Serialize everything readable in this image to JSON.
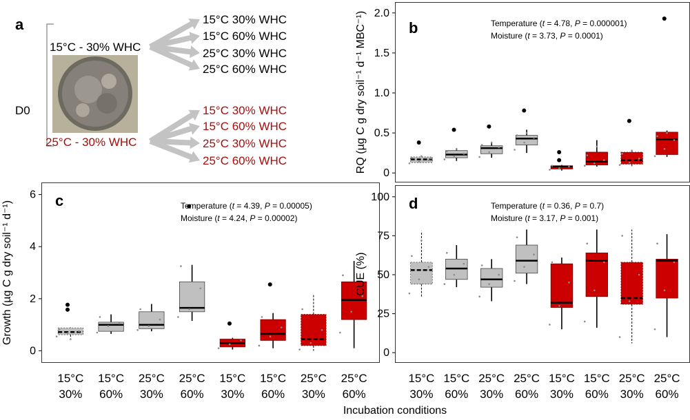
{
  "panel_a": {
    "letter": "a",
    "d0_label": "D0",
    "source_top": "15°C - 30% WHC",
    "source_bottom": "25°C - 30% WHC",
    "targets_top": [
      "15°C 30% WHC",
      "15°C 60% WHC",
      "25°C 30% WHC",
      "25°C 60% WHC"
    ],
    "targets_bottom": [
      "15°C 30% WHC",
      "15°C 60% WHC",
      "25°C 30% WHC",
      "25°C 60% WHC"
    ],
    "top_color": "#000000",
    "bottom_color": "#a50e0e",
    "arrow_color": "#c3c3c3"
  },
  "colors": {
    "grey_fill": "#c0c0c0",
    "red_fill": "#cc0000",
    "jitter": "#8a8a8a",
    "border": "#333333"
  },
  "x_conditions": [
    {
      "temp": "15°C",
      "moist": "30%"
    },
    {
      "temp": "15°C",
      "moist": "60%"
    },
    {
      "temp": "25°C",
      "moist": "30%"
    },
    {
      "temp": "25°C",
      "moist": "60%"
    },
    {
      "temp": "15°C",
      "moist": "30%"
    },
    {
      "temp": "15°C",
      "moist": "60%"
    },
    {
      "temp": "25°C",
      "moist": "30%"
    },
    {
      "temp": "25°C",
      "moist": "60%"
    }
  ],
  "xtitle": "Incubation conditions",
  "chart_data": [
    {
      "id": "b",
      "letter": "b",
      "type": "box",
      "ylabel": "RQ (µg C g dry soil⁻¹ d⁻¹ MBC⁻¹)",
      "ylim": [
        -0.05,
        2.05
      ],
      "yticks": [
        0,
        0.5,
        1.0,
        1.5,
        2.0
      ],
      "ytick_labels": [
        "0",
        "0.5",
        "1.0",
        "1.5",
        "2.0"
      ],
      "stats": [
        {
          "label": "Temperature",
          "t": "4.78",
          "P": "0.000001"
        },
        {
          "label": "Moisture",
          "t": "3.73",
          "P": "0.0001"
        }
      ],
      "categories": [
        "15°C 30%",
        "15°C 60%",
        "25°C 30%",
        "25°C 60%",
        "15°C 30%",
        "15°C 60%",
        "25°C 30%",
        "25°C 60%"
      ],
      "groups": [
        "15°C - 30% WHC",
        "15°C - 30% WHC",
        "15°C - 30% WHC",
        "15°C - 30% WHC",
        "25°C - 30% WHC",
        "25°C - 30% WHC",
        "25°C - 30% WHC",
        "25°C - 30% WHC"
      ],
      "boxes": [
        {
          "q1": 0.13,
          "med": 0.17,
          "q3": 0.2,
          "lo": 0.13,
          "hi": 0.2,
          "dashed": true,
          "outliers": [
            0.38
          ],
          "points": [
            0.12,
            0.14,
            0.16,
            0.19,
            0.21,
            0.18
          ]
        },
        {
          "q1": 0.19,
          "med": 0.23,
          "q3": 0.28,
          "lo": 0.15,
          "hi": 0.31,
          "dashed": false,
          "outliers": [
            0.54
          ],
          "points": [
            0.17,
            0.21,
            0.24,
            0.27,
            0.3
          ]
        },
        {
          "q1": 0.24,
          "med": 0.31,
          "q3": 0.34,
          "lo": 0.19,
          "hi": 0.39,
          "dashed": false,
          "outliers": [
            0.58
          ],
          "points": [
            0.2,
            0.26,
            0.32,
            0.35,
            0.38
          ]
        },
        {
          "q1": 0.35,
          "med": 0.43,
          "q3": 0.47,
          "lo": 0.25,
          "hi": 0.54,
          "dashed": false,
          "outliers": [
            0.78
          ],
          "points": [
            0.29,
            0.38,
            0.44,
            0.47,
            0.5
          ]
        },
        {
          "q1": 0.05,
          "med": 0.08,
          "q3": 0.09,
          "lo": 0.03,
          "hi": 0.1,
          "dashed": false,
          "outliers": [
            0.16,
            0.26
          ],
          "points": [
            0.04,
            0.06,
            0.08,
            0.09
          ]
        },
        {
          "q1": 0.1,
          "med": 0.14,
          "q3": 0.26,
          "lo": 0.08,
          "hi": 0.41,
          "dashed": false,
          "outliers": [],
          "points": [
            0.09,
            0.12,
            0.16,
            0.22,
            0.33
          ]
        },
        {
          "q1": 0.11,
          "med": 0.16,
          "q3": 0.26,
          "lo": 0.08,
          "hi": 0.29,
          "dashed": true,
          "outliers": [
            0.65
          ],
          "points": [
            0.1,
            0.13,
            0.18,
            0.24,
            0.28
          ]
        },
        {
          "q1": 0.23,
          "med": 0.42,
          "q3": 0.51,
          "lo": 0.2,
          "hi": 0.53,
          "dashed": false,
          "outliers": [
            1.93
          ],
          "points": [
            0.21,
            0.3,
            0.41,
            0.46,
            0.5
          ]
        }
      ]
    },
    {
      "id": "c",
      "letter": "c",
      "type": "box",
      "ylabel": "Growth (µg C g dry soil⁻¹ d⁻¹)",
      "ylim": [
        -0.25,
        6.2
      ],
      "yticks": [
        0,
        2,
        4,
        6
      ],
      "ytick_labels": [
        "0",
        "2",
        "4",
        "6"
      ],
      "stats": [
        {
          "label": "Temperature",
          "t": "4.39",
          "P": "0.00005"
        },
        {
          "label": "Moisture",
          "t": "4.24",
          "P": "0.00002"
        }
      ],
      "categories": [
        "15°C 30%",
        "15°C 60%",
        "25°C 30%",
        "25°C 60%",
        "15°C 30%",
        "15°C 60%",
        "25°C 30%",
        "25°C 60%"
      ],
      "groups": [
        "15°C - 30% WHC",
        "15°C - 30% WHC",
        "15°C - 30% WHC",
        "15°C - 30% WHC",
        "25°C - 30% WHC",
        "25°C - 30% WHC",
        "25°C - 30% WHC",
        "25°C - 30% WHC"
      ],
      "boxes": [
        {
          "q1": 0.62,
          "med": 0.72,
          "q3": 0.88,
          "lo": 0.5,
          "hi": 0.9,
          "dashed": true,
          "outliers": [
            1.58,
            1.77
          ],
          "points": [
            0.55,
            0.68,
            0.75,
            0.82,
            0.45
          ]
        },
        {
          "q1": 0.75,
          "med": 1.0,
          "q3": 1.1,
          "lo": 0.65,
          "hi": 1.4,
          "dashed": false,
          "outliers": [],
          "points": [
            0.7,
            0.95,
            1.05,
            1.3
          ]
        },
        {
          "q1": 0.85,
          "med": 1.0,
          "q3": 1.5,
          "lo": 0.75,
          "hi": 1.8,
          "dashed": false,
          "outliers": [],
          "points": [
            0.8,
            0.95,
            1.2,
            1.6
          ]
        },
        {
          "q1": 1.5,
          "med": 1.65,
          "q3": 2.65,
          "lo": 1.15,
          "hi": 3.3,
          "dashed": false,
          "outliers": [
            5.55
          ],
          "points": [
            1.3,
            1.6,
            2.4,
            3.25
          ]
        },
        {
          "q1": 0.15,
          "med": 0.3,
          "q3": 0.45,
          "lo": 0.05,
          "hi": 0.5,
          "dashed": false,
          "outliers": [
            1.05
          ],
          "points": [
            0.1,
            0.25,
            0.4
          ]
        },
        {
          "q1": 0.4,
          "med": 0.65,
          "q3": 1.2,
          "lo": 0.1,
          "hi": 1.45,
          "dashed": false,
          "outliers": [
            2.55
          ],
          "points": [
            0.2,
            0.55,
            0.9,
            1.3
          ]
        },
        {
          "q1": 0.2,
          "med": 0.45,
          "q3": 1.4,
          "lo": 0.0,
          "hi": 2.15,
          "dashed": true,
          "outliers": [],
          "points": [
            0.05,
            0.3,
            0.8,
            1.6
          ]
        },
        {
          "q1": 1.2,
          "med": 1.95,
          "q3": 2.65,
          "lo": 0.1,
          "hi": 3.45,
          "dashed": false,
          "outliers": [],
          "points": [
            0.7,
            1.5,
            2.1,
            2.9
          ]
        }
      ]
    },
    {
      "id": "d",
      "letter": "d",
      "type": "box",
      "ylabel": "CUE (%)",
      "ylim": [
        -3,
        103
      ],
      "yticks": [
        0,
        25,
        50,
        75,
        100
      ],
      "ytick_labels": [
        "0",
        "25",
        "50",
        "75",
        "100"
      ],
      "stats": [
        {
          "label": "Temperature",
          "t": "0.36",
          "P": "0.7"
        },
        {
          "label": "Moisture",
          "t": "3.17",
          "P": "0.001"
        }
      ],
      "categories": [
        "15°C 30%",
        "15°C 60%",
        "25°C 30%",
        "25°C 60%",
        "15°C 30%",
        "15°C 60%",
        "25°C 30%",
        "25°C 60%"
      ],
      "groups": [
        "15°C - 30% WHC",
        "15°C - 30% WHC",
        "15°C - 30% WHC",
        "15°C - 30% WHC",
        "25°C - 30% WHC",
        "25°C - 30% WHC",
        "25°C - 30% WHC",
        "25°C - 30% WHC"
      ],
      "boxes": [
        {
          "q1": 44,
          "med": 53,
          "q3": 58,
          "lo": 36,
          "hi": 78,
          "dashed": true,
          "outliers": [],
          "points": [
            38,
            47,
            55,
            62,
            72
          ]
        },
        {
          "q1": 47,
          "med": 54,
          "q3": 60,
          "lo": 42,
          "hi": 69,
          "dashed": false,
          "outliers": [],
          "points": [
            44,
            50,
            57,
            64
          ]
        },
        {
          "q1": 42,
          "med": 47,
          "q3": 54,
          "lo": 33,
          "hi": 60,
          "dashed": false,
          "outliers": [],
          "points": [
            36,
            44,
            50,
            56
          ]
        },
        {
          "q1": 51,
          "med": 59,
          "q3": 69,
          "lo": 44,
          "hi": 79,
          "dashed": false,
          "outliers": [],
          "points": [
            46,
            55,
            63,
            74
          ]
        },
        {
          "q1": 29,
          "med": 32,
          "q3": 57,
          "lo": 15,
          "hi": 61,
          "dashed": false,
          "outliers": [],
          "points": [
            18,
            30,
            45,
            58
          ]
        },
        {
          "q1": 36,
          "med": 59,
          "q3": 64,
          "lo": 16,
          "hi": 79,
          "dashed": false,
          "outliers": [],
          "points": [
            20,
            40,
            58,
            70
          ]
        },
        {
          "q1": 31,
          "med": 35,
          "q3": 58,
          "lo": 6,
          "hi": 79,
          "dashed": true,
          "outliers": [],
          "points": [
            10,
            33,
            50,
            75
          ]
        },
        {
          "q1": 35,
          "med": 59,
          "q3": 60,
          "lo": 10,
          "hi": 76,
          "dashed": false,
          "outliers": [],
          "points": [
            15,
            40,
            58,
            70
          ]
        }
      ]
    }
  ]
}
